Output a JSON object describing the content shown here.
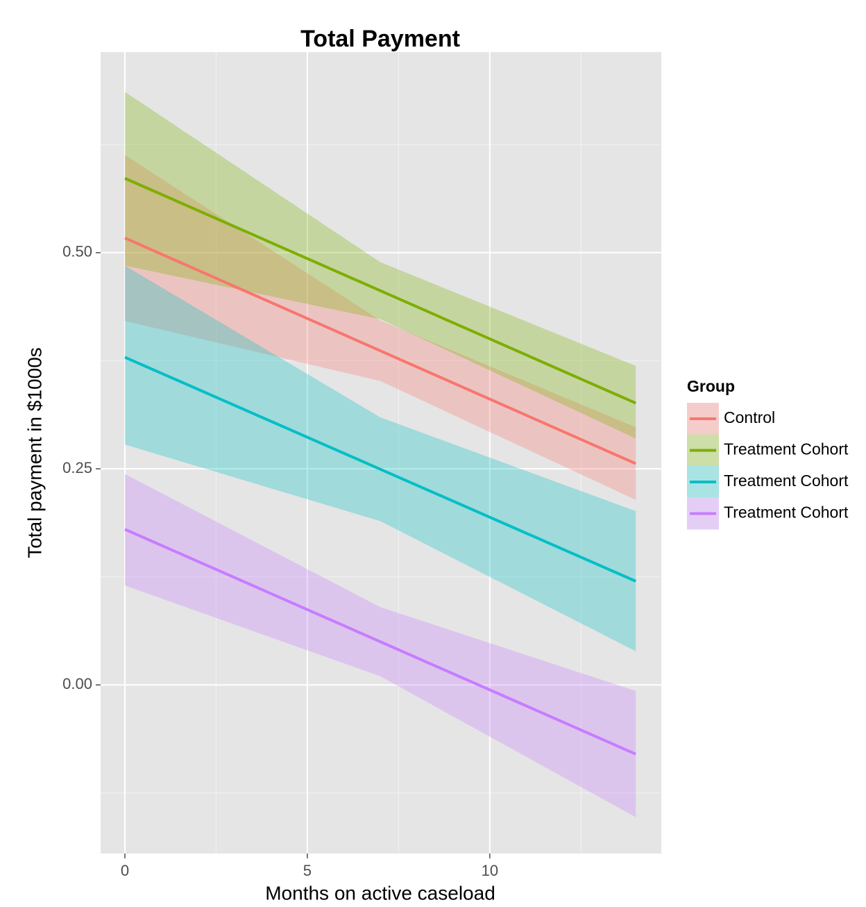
{
  "chart_data": {
    "type": "line",
    "title": "Total Payment",
    "x_label": "Months on active caseload",
    "y_label": "Total payment in $1000s",
    "legend_title": "Group",
    "legend_position": "right",
    "grid": true,
    "x": [
      0,
      7,
      14
    ],
    "xlim": [
      -0.665,
      14.7
    ],
    "xticks": [
      0,
      5,
      10
    ],
    "ylim": [
      -0.195,
      0.732
    ],
    "yticks": [
      {
        "value": 0,
        "label": "0.00"
      },
      {
        "value": 0.25,
        "label": "0.25"
      },
      {
        "value": 0.5,
        "label": "0.50"
      }
    ],
    "series": [
      {
        "name": "Control",
        "color": "#F8766D",
        "values": [
          0.517,
          0.3865,
          0.256
        ],
        "lower": [
          0.421,
          0.3515,
          0.214
        ],
        "upper": [
          0.613,
          0.4215,
          0.298
        ]
      },
      {
        "name": "Treatment Cohort",
        "color": "#7CAE00",
        "values": [
          0.586,
          0.456,
          0.326
        ],
        "lower": [
          0.485,
          0.423,
          0.285
        ],
        "upper": [
          0.686,
          0.489,
          0.369
        ]
      },
      {
        "name": "Treatment Cohort",
        "color": "#00BFC4",
        "values": [
          0.379,
          0.2495,
          0.12
        ],
        "lower": [
          0.278,
          0.1895,
          0.039
        ],
        "upper": [
          0.485,
          0.3095,
          0.201
        ]
      },
      {
        "name": "Treatment Cohort",
        "color": "#C77CFF",
        "values": [
          0.18,
          0.05,
          -0.08
        ],
        "lower": [
          0.115,
          0.01,
          -0.153
        ],
        "upper": [
          0.244,
          0.09,
          -0.007
        ]
      }
    ]
  }
}
